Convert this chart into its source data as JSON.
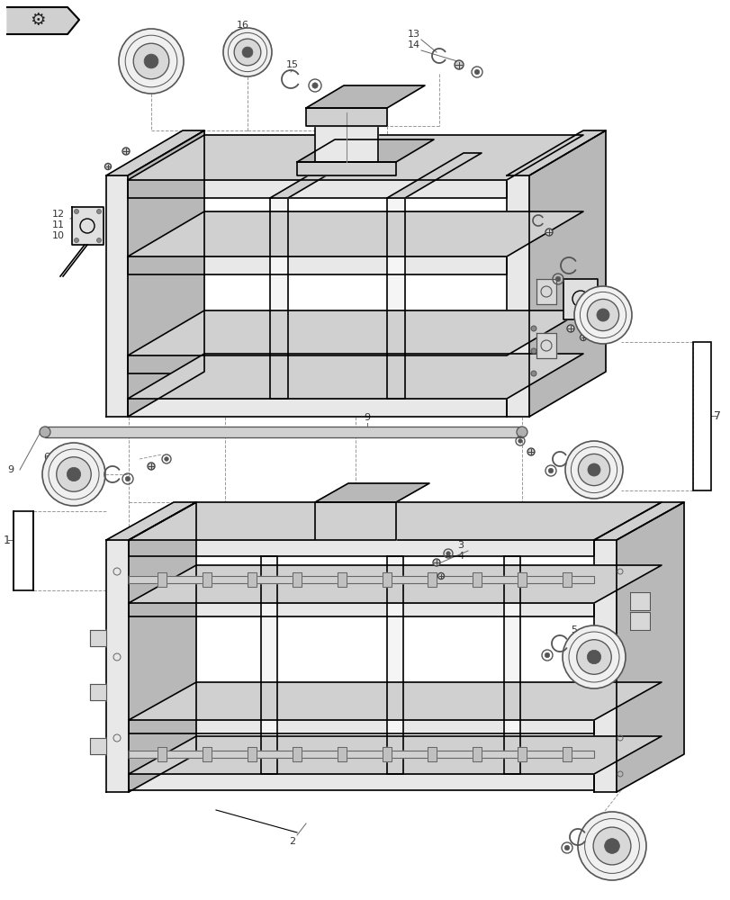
{
  "bg_color": "#ffffff",
  "line_color": "#000000",
  "gray1": "#e8e8e8",
  "gray2": "#d0d0d0",
  "gray3": "#b8b8b8",
  "gray4": "#f5f5f5",
  "dash_color": "#999999",
  "label_color": "#444444",
  "lw_main": 1.5,
  "lw_thin": 0.8,
  "lw_dash": 0.7
}
